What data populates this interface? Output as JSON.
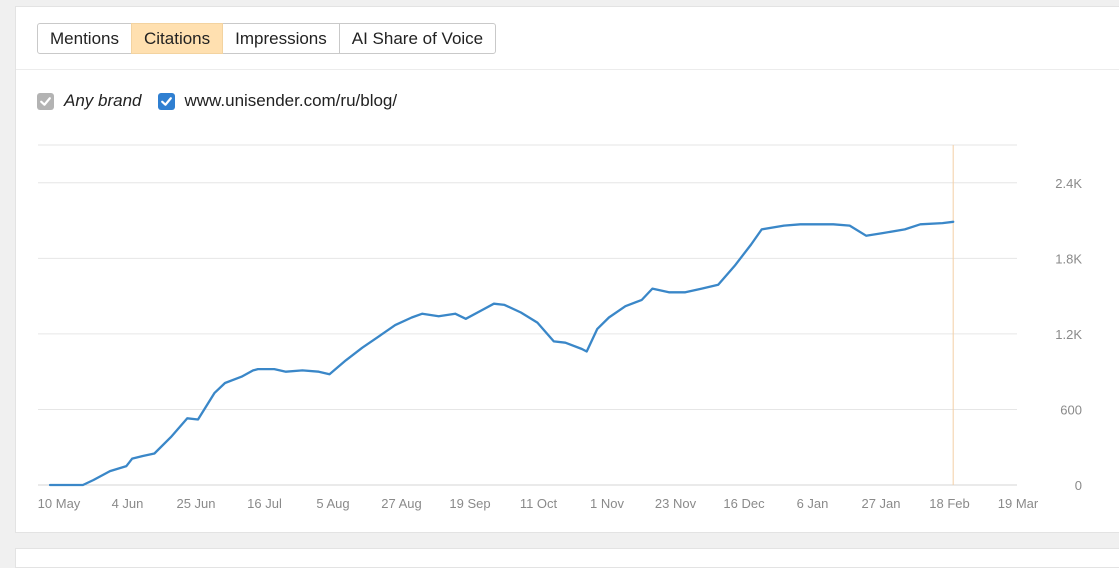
{
  "tabs": [
    {
      "label": "Mentions",
      "active": false
    },
    {
      "label": "Citations",
      "active": true
    },
    {
      "label": "Impressions",
      "active": false
    },
    {
      "label": "AI Share of Voice",
      "active": false
    }
  ],
  "legend": [
    {
      "label": "Any brand",
      "checked": true,
      "italic": true,
      "color": "#b3b3b3"
    },
    {
      "label": "www.unisender.com/ru/blog/",
      "checked": true,
      "italic": false,
      "color": "#2f7fd1"
    }
  ],
  "colors": {
    "accent_tab": "#ffe0b0",
    "line": "#3a87c8",
    "cursor_line": "#f3cfa6",
    "grid": "#e6e6e6"
  },
  "chart_data": {
    "type": "line",
    "title": "",
    "xlabel": "",
    "ylabel": "",
    "ylim": [
      0,
      2700
    ],
    "y_ticks": [
      "0",
      "600",
      "1.2K",
      "1.8K",
      "2.4K"
    ],
    "x_ticks": [
      "10 May",
      "4 Jun",
      "25 Jun",
      "16 Jul",
      "5 Aug",
      "27 Aug",
      "19 Sep",
      "11 Oct",
      "1 Nov",
      "23 Nov",
      "16 Dec",
      "6 Jan",
      "27 Jan",
      "18 Feb",
      "19 Mar"
    ],
    "grid": true,
    "series": [
      {
        "name": "www.unisender.com/ru/blog/",
        "color": "#3a87c8",
        "points": [
          [
            0,
            0
          ],
          [
            3.4,
            0
          ],
          [
            4.5,
            40
          ],
          [
            6.2,
            110
          ],
          [
            7.9,
            150
          ],
          [
            8.5,
            210
          ],
          [
            9.6,
            230
          ],
          [
            10.8,
            250
          ],
          [
            12.5,
            380
          ],
          [
            14.2,
            530
          ],
          [
            15.3,
            520
          ],
          [
            17.0,
            730
          ],
          [
            18.1,
            810
          ],
          [
            19.8,
            860
          ],
          [
            21.0,
            910
          ],
          [
            21.5,
            920
          ],
          [
            23.2,
            920
          ],
          [
            24.4,
            900
          ],
          [
            26.1,
            910
          ],
          [
            27.8,
            900
          ],
          [
            28.9,
            880
          ],
          [
            30.6,
            990
          ],
          [
            32.3,
            1090
          ],
          [
            34.0,
            1180
          ],
          [
            35.7,
            1270
          ],
          [
            37.4,
            1330
          ],
          [
            38.5,
            1360
          ],
          [
            40.2,
            1340
          ],
          [
            41.9,
            1360
          ],
          [
            43.0,
            1320
          ],
          [
            44.7,
            1390
          ],
          [
            45.9,
            1440
          ],
          [
            47.0,
            1430
          ],
          [
            48.7,
            1370
          ],
          [
            50.4,
            1290
          ],
          [
            52.1,
            1140
          ],
          [
            53.3,
            1130
          ],
          [
            55.0,
            1080
          ],
          [
            55.5,
            1060
          ],
          [
            56.6,
            1240
          ],
          [
            57.8,
            1330
          ],
          [
            59.5,
            1420
          ],
          [
            61.2,
            1470
          ],
          [
            62.3,
            1560
          ],
          [
            64.0,
            1530
          ],
          [
            65.7,
            1530
          ],
          [
            67.4,
            1560
          ],
          [
            69.1,
            1590
          ],
          [
            70.8,
            1740
          ],
          [
            72.5,
            1910
          ],
          [
            73.6,
            2030
          ],
          [
            75.9,
            2060
          ],
          [
            77.6,
            2070
          ],
          [
            79.3,
            2070
          ],
          [
            81.0,
            2070
          ],
          [
            82.7,
            2060
          ],
          [
            84.4,
            1980
          ],
          [
            86.1,
            2000
          ],
          [
            88.4,
            2030
          ],
          [
            90.0,
            2070
          ],
          [
            92.3,
            2080
          ],
          [
            93.4,
            2090
          ]
        ]
      }
    ]
  }
}
